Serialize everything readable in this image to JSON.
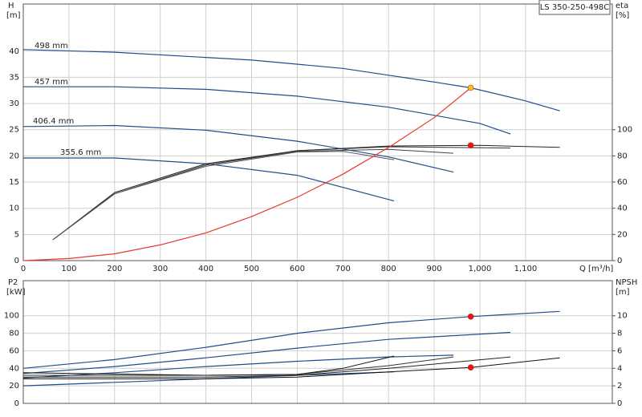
{
  "chart_data": [
    {
      "type": "line",
      "title": "LS 350-250-498C",
      "ylabel": "H",
      "yunit": "[m]",
      "y2label": "eta",
      "y2unit": "[%]",
      "xlabel": "Q [m³/h]",
      "xlim": [
        0,
        1290
      ],
      "ylim": [
        0,
        49
      ],
      "y2lim": [
        0,
        196
      ],
      "xticks": [
        0,
        100,
        200,
        300,
        400,
        500,
        600,
        700,
        800,
        900,
        {
          "value": 1000,
          "label": "1,000"
        },
        {
          "value": 1100,
          "label": "1,100"
        }
      ],
      "yticks": [
        0,
        5,
        10,
        15,
        20,
        25,
        30,
        35,
        40
      ],
      "y2ticks": [
        0,
        20,
        40,
        60,
        80,
        100
      ],
      "grid": true,
      "series": [
        {
          "name": "498 mm",
          "color": "#1f4e8c",
          "x": [
            0,
            200,
            500,
            700,
            800,
            900,
            980,
            1100,
            1175
          ],
          "values": [
            40.3,
            39.8,
            38.3,
            36.7,
            35.4,
            34.1,
            33,
            30.5,
            28.6
          ]
        },
        {
          "name": "457 mm",
          "color": "#1f4e8c",
          "x": [
            0,
            200,
            400,
            600,
            800,
            1000,
            1067
          ],
          "values": [
            33.2,
            33.2,
            32.7,
            31.4,
            29.3,
            26.2,
            24.2
          ]
        },
        {
          "name": "406.4 mm",
          "color": "#1f4e8c",
          "x": [
            0,
            200,
            400,
            600,
            800,
            942
          ],
          "values": [
            25.6,
            25.8,
            24.9,
            22.8,
            19.8,
            16.9
          ]
        },
        {
          "name": "355.6 mm",
          "color": "#1f4e8c",
          "x": [
            0,
            200,
            400,
            600,
            812
          ],
          "values": [
            19.6,
            19.6,
            18.5,
            16.3,
            11.4
          ]
        },
        {
          "axis": "y2",
          "color": "#222222",
          "x": [
            65,
            200,
            400,
            600,
            800,
            1000,
            1175
          ],
          "values": [
            16,
            52,
            74,
            84,
            87.5,
            88,
            86.5
          ]
        },
        {
          "axis": "y2",
          "color": "#333333",
          "x": [
            65,
            200,
            400,
            600,
            800,
            1067
          ],
          "values": [
            16,
            51,
            73,
            84,
            87,
            86
          ]
        },
        {
          "axis": "y2",
          "color": "#444444",
          "x": [
            65,
            200,
            400,
            600,
            800,
            942
          ],
          "values": [
            16,
            51,
            73,
            83.5,
            85,
            82
          ]
        },
        {
          "axis": "y2",
          "color": "#555555",
          "x": [
            65,
            200,
            400,
            600,
            700,
            812
          ],
          "values": [
            16,
            51,
            72,
            83,
            83.5,
            77
          ]
        },
        {
          "color": "#e8392b",
          "x": [
            0,
            100,
            200,
            300,
            400,
            500,
            600,
            700,
            800,
            900,
            980
          ],
          "values": [
            0,
            0.4,
            1.3,
            3.0,
            5.3,
            8.4,
            12.1,
            16.5,
            21.6,
            27.3,
            33
          ]
        }
      ],
      "points": [
        {
          "x": 980,
          "y": 33,
          "color": "#f5c518"
        },
        {
          "x": 980,
          "y": 88,
          "axis": "y2",
          "color": "#e8160c"
        }
      ]
    },
    {
      "type": "line",
      "ylabel": "P2",
      "yunit": "[kW]",
      "y2label": "NPSH",
      "y2unit": "[m]",
      "xlim": [
        0,
        1290
      ],
      "ylim": [
        0,
        140
      ],
      "y2lim": [
        0,
        14
      ],
      "yticks": [
        0,
        20,
        40,
        60,
        80,
        100
      ],
      "y2ticks": [
        0,
        2,
        4,
        6,
        8,
        10
      ],
      "grid": true,
      "series": [
        {
          "color": "#1f4e8c",
          "x": [
            0,
            200,
            400,
            600,
            800,
            980,
            1175
          ],
          "values": [
            40,
            50,
            64,
            80,
            92,
            99,
            105
          ]
        },
        {
          "color": "#1f4e8c",
          "x": [
            0,
            200,
            400,
            600,
            800,
            1067
          ],
          "values": [
            34,
            42,
            52,
            63,
            73,
            81
          ]
        },
        {
          "color": "#1f4e8c",
          "x": [
            0,
            200,
            400,
            600,
            800,
            942
          ],
          "values": [
            29,
            35,
            42,
            48,
            53,
            55
          ]
        },
        {
          "color": "#1f4e8c",
          "x": [
            0,
            200,
            400,
            600,
            812
          ],
          "values": [
            20,
            24,
            28,
            32,
            36
          ]
        },
        {
          "axis": "y2",
          "color": "#111111",
          "x": [
            0,
            400,
            600,
            800,
            980,
            1175
          ],
          "values": [
            2.8,
            2.8,
            3.0,
            3.6,
            4.1,
            5.2
          ]
        },
        {
          "axis": "y2",
          "color": "#222222",
          "x": [
            0,
            400,
            600,
            800,
            1067
          ],
          "values": [
            3.0,
            3.0,
            3.2,
            4.0,
            5.3
          ]
        },
        {
          "axis": "y2",
          "color": "#333333",
          "x": [
            0,
            400,
            600,
            800,
            942
          ],
          "values": [
            3.2,
            3.2,
            3.3,
            4.3,
            5.3
          ]
        },
        {
          "axis": "y2",
          "color": "#111111",
          "x": [
            0,
            400,
            600,
            700,
            812
          ],
          "values": [
            3.5,
            3.2,
            3.3,
            4.0,
            5.4
          ]
        }
      ],
      "points": [
        {
          "x": 980,
          "y": 99,
          "color": "#e8160c"
        },
        {
          "x": 980,
          "y": 4.1,
          "axis": "y2",
          "color": "#e8160c"
        }
      ]
    }
  ]
}
